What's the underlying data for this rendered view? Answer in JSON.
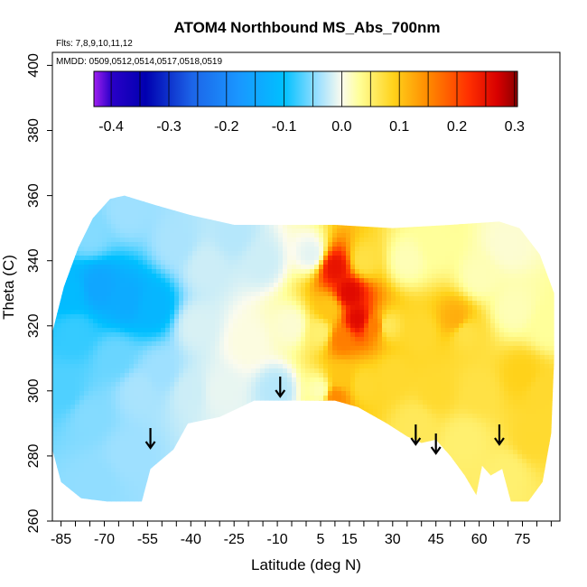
{
  "chart_data": {
    "type": "heatmap",
    "title": "ATOM4 Northbound MS_Abs_700nm",
    "annotations": {
      "flights": "Flts: 7,8,9,10,11,12",
      "dates": "MMDD: 0509,0512,0514,0517,0518,0519"
    },
    "xlabel": "Latitude (deg N)",
    "ylabel": "Theta (C)",
    "xlim": [
      -88,
      88
    ],
    "ylim": [
      260,
      404
    ],
    "x_ticks": [
      -85,
      -70,
      -55,
      -40,
      -25,
      -10,
      5,
      15,
      30,
      45,
      60,
      75
    ],
    "x_minor_step": 5,
    "y_ticks": [
      260,
      280,
      300,
      320,
      340,
      360,
      380,
      400
    ],
    "colorbar": {
      "min": -0.43,
      "max": 0.305,
      "ticks": [
        -0.4,
        -0.3,
        -0.2,
        -0.1,
        0.0,
        0.1,
        0.2,
        0.3
      ],
      "tick_labels": [
        "-0.4",
        "-0.3",
        "-0.2",
        "-0.1",
        "0.0",
        "0.1",
        "0.2",
        "0.3"
      ],
      "stops": [
        {
          "v": -0.43,
          "color": "#a020f0"
        },
        {
          "v": -0.4,
          "color": "#2a00c8"
        },
        {
          "v": -0.34,
          "color": "#0000b0"
        },
        {
          "v": -0.26,
          "color": "#1c64e8"
        },
        {
          "v": -0.18,
          "color": "#1a96ff"
        },
        {
          "v": -0.1,
          "color": "#00c0ff"
        },
        {
          "v": -0.04,
          "color": "#9ee0ff"
        },
        {
          "v": 0.0,
          "color": "#fbfbee"
        },
        {
          "v": 0.03,
          "color": "#ffff9a"
        },
        {
          "v": 0.09,
          "color": "#ffd21a"
        },
        {
          "v": 0.15,
          "color": "#ff8a00"
        },
        {
          "v": 0.22,
          "color": "#ff3000"
        },
        {
          "v": 0.27,
          "color": "#d80000"
        },
        {
          "v": 0.305,
          "color": "#8b0000"
        }
      ]
    },
    "arrows_latitude": [
      -54,
      -9,
      38,
      45,
      67
    ],
    "field": {
      "boundary": [
        [
          -88,
          282
        ],
        [
          -88,
          318
        ],
        [
          -84,
          332
        ],
        [
          -79,
          344
        ],
        [
          -74,
          353
        ],
        [
          -68,
          359
        ],
        [
          -63,
          360
        ],
        [
          -52,
          357
        ],
        [
          -40,
          354
        ],
        [
          -25,
          351
        ],
        [
          -8,
          351
        ],
        [
          10,
          351
        ],
        [
          30,
          350
        ],
        [
          50,
          351
        ],
        [
          67,
          352
        ],
        [
          74,
          350
        ],
        [
          81,
          342
        ],
        [
          86,
          330
        ],
        [
          86,
          310
        ],
        [
          85,
          287
        ],
        [
          82,
          272
        ],
        [
          77,
          266
        ],
        [
          71,
          266
        ],
        [
          68,
          276
        ],
        [
          64,
          274
        ],
        [
          61,
          277
        ],
        [
          59,
          268
        ],
        [
          55,
          274
        ],
        [
          50,
          280
        ],
        [
          45,
          285
        ],
        [
          40,
          284
        ],
        [
          35,
          286
        ],
        [
          28,
          290
        ],
        [
          18,
          295
        ],
        [
          10,
          297
        ],
        [
          2,
          297
        ],
        [
          -8,
          297
        ],
        [
          -18,
          297
        ],
        [
          -30,
          292
        ],
        [
          -41,
          290
        ],
        [
          -46,
          282
        ],
        [
          -50,
          279
        ],
        [
          -54,
          276
        ],
        [
          -57,
          266
        ],
        [
          -69,
          266
        ],
        [
          -78,
          267
        ],
        [
          -85,
          272
        ]
      ],
      "samples": [
        {
          "lat": -82,
          "theta": 330,
          "value": -0.11
        },
        {
          "lat": -72,
          "theta": 332,
          "value": -0.15
        },
        {
          "lat": -62,
          "theta": 328,
          "value": -0.14
        },
        {
          "lat": -53,
          "theta": 326,
          "value": -0.12
        },
        {
          "lat": -80,
          "theta": 318,
          "value": -0.08
        },
        {
          "lat": -66,
          "theta": 310,
          "value": -0.06
        },
        {
          "lat": -50,
          "theta": 306,
          "value": -0.04
        },
        {
          "lat": -75,
          "theta": 292,
          "value": -0.05
        },
        {
          "lat": -62,
          "theta": 280,
          "value": -0.04
        },
        {
          "lat": -72,
          "theta": 272,
          "value": -0.045
        },
        {
          "lat": -58,
          "theta": 300,
          "value": -0.035
        },
        {
          "lat": -84,
          "theta": 300,
          "value": -0.07
        },
        {
          "lat": -75,
          "theta": 348,
          "value": -0.05
        },
        {
          "lat": -62,
          "theta": 355,
          "value": -0.04
        },
        {
          "lat": -45,
          "theta": 345,
          "value": -0.035
        },
        {
          "lat": -35,
          "theta": 338,
          "value": -0.02
        },
        {
          "lat": -38,
          "theta": 320,
          "value": -0.015
        },
        {
          "lat": -40,
          "theta": 300,
          "value": -0.02
        },
        {
          "lat": -30,
          "theta": 300,
          "value": -0.008
        },
        {
          "lat": -20,
          "theta": 315,
          "value": 0.005
        },
        {
          "lat": -15,
          "theta": 340,
          "value": -0.02
        },
        {
          "lat": -25,
          "theta": 348,
          "value": -0.03
        },
        {
          "lat": -10,
          "theta": 300,
          "value": -0.03
        },
        {
          "lat": -5,
          "theta": 320,
          "value": 0.01
        },
        {
          "lat": 2,
          "theta": 342,
          "value": -0.01
        },
        {
          "lat": 5,
          "theta": 318,
          "value": 0.05
        },
        {
          "lat": 5,
          "theta": 300,
          "value": 0.02
        },
        {
          "lat": 10,
          "theta": 338,
          "value": 0.25
        },
        {
          "lat": 15,
          "theta": 330,
          "value": 0.26
        },
        {
          "lat": 18,
          "theta": 322,
          "value": 0.26
        },
        {
          "lat": 12,
          "theta": 316,
          "value": 0.16
        },
        {
          "lat": 24,
          "theta": 320,
          "value": 0.16
        },
        {
          "lat": 8,
          "theta": 325,
          "value": 0.1
        },
        {
          "lat": 20,
          "theta": 340,
          "value": 0.07
        },
        {
          "lat": 12,
          "theta": 304,
          "value": 0.1
        },
        {
          "lat": 10,
          "theta": 298,
          "value": 0.15
        },
        {
          "lat": 20,
          "theta": 302,
          "value": 0.08
        },
        {
          "lat": 30,
          "theta": 305,
          "value": 0.08
        },
        {
          "lat": 28,
          "theta": 320,
          "value": 0.06
        },
        {
          "lat": 35,
          "theta": 340,
          "value": 0.02
        },
        {
          "lat": 45,
          "theta": 345,
          "value": 0.03
        },
        {
          "lat": 40,
          "theta": 318,
          "value": 0.08
        },
        {
          "lat": 45,
          "theta": 300,
          "value": 0.08
        },
        {
          "lat": 38,
          "theta": 290,
          "value": 0.06
        },
        {
          "lat": 52,
          "theta": 322,
          "value": 0.12
        },
        {
          "lat": 55,
          "theta": 318,
          "value": 0.07
        },
        {
          "lat": 60,
          "theta": 335,
          "value": 0.02
        },
        {
          "lat": 60,
          "theta": 300,
          "value": 0.07
        },
        {
          "lat": 55,
          "theta": 285,
          "value": 0.05
        },
        {
          "lat": 70,
          "theta": 345,
          "value": 0.01
        },
        {
          "lat": 72,
          "theta": 325,
          "value": 0.02
        },
        {
          "lat": 75,
          "theta": 305,
          "value": 0.09
        },
        {
          "lat": 78,
          "theta": 285,
          "value": 0.08
        },
        {
          "lat": 82,
          "theta": 300,
          "value": 0.08
        },
        {
          "lat": 84,
          "theta": 320,
          "value": 0.03
        },
        {
          "lat": 70,
          "theta": 275,
          "value": 0.05
        }
      ]
    }
  }
}
